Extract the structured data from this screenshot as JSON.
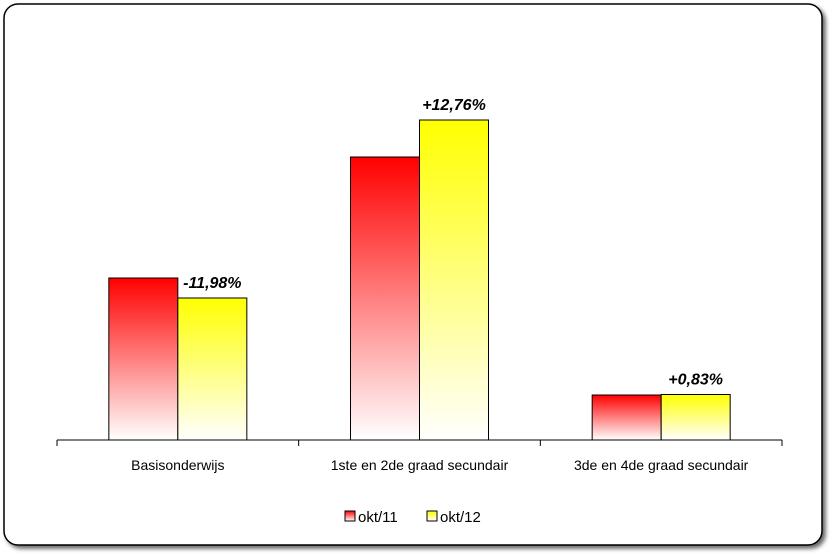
{
  "chart_data": {
    "type": "bar",
    "categories": [
      "Basisonderwijs",
      "1ste en 2de graad secundair",
      "3de en 4de graad secundair"
    ],
    "series": [
      {
        "name": "okt/11",
        "values": [
          162,
          283,
          45
        ],
        "color": "#ff0000"
      },
      {
        "name": "okt/12",
        "values": [
          142,
          320,
          45.5
        ],
        "color": "#ffff00"
      }
    ],
    "data_labels": [
      "-11,98%",
      "+12,76%",
      "+0,83%"
    ],
    "ylim": [
      0,
      330
    ],
    "legend_position": "bottom",
    "grid": false,
    "title": "",
    "xlabel": "",
    "ylabel": ""
  }
}
